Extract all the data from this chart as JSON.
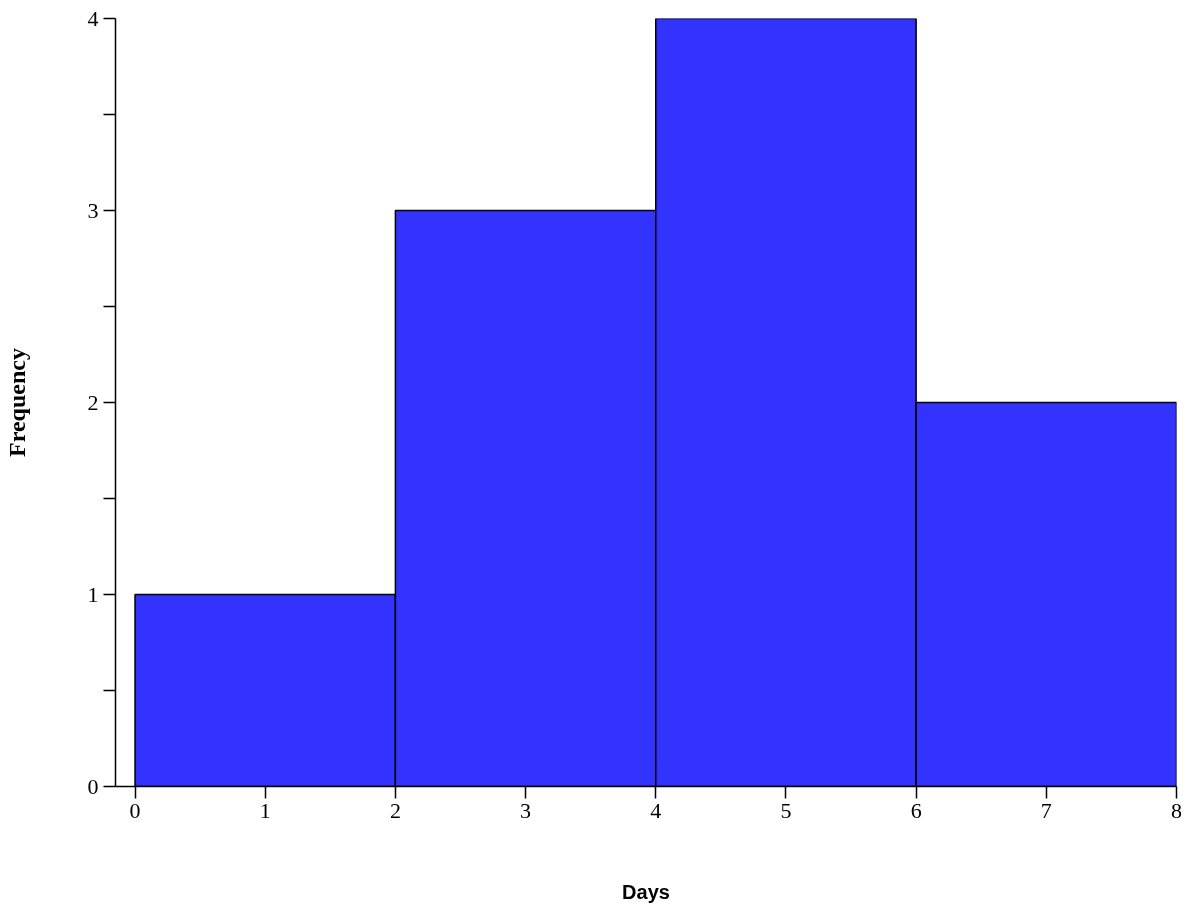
{
  "chart_data": {
    "type": "histogram",
    "xlabel": "Days",
    "ylabel": "Frequency",
    "bins": [
      0,
      2,
      4,
      6,
      8
    ],
    "values": [
      1,
      3,
      4,
      2
    ],
    "color": "#3333ff",
    "xlim": [
      -0.15,
      8
    ],
    "ylim": [
      0,
      4
    ],
    "xticks": [
      0,
      1,
      2,
      3,
      4,
      5,
      6,
      7,
      8
    ],
    "yticks": [
      0,
      {
        "value": 0.5,
        "label": null
      },
      1,
      {
        "value": 1.5,
        "label": null
      },
      2,
      {
        "value": 2.5,
        "label": null
      },
      3,
      {
        "value": 3.5,
        "label": null
      },
      4
    ],
    "grid": false
  }
}
